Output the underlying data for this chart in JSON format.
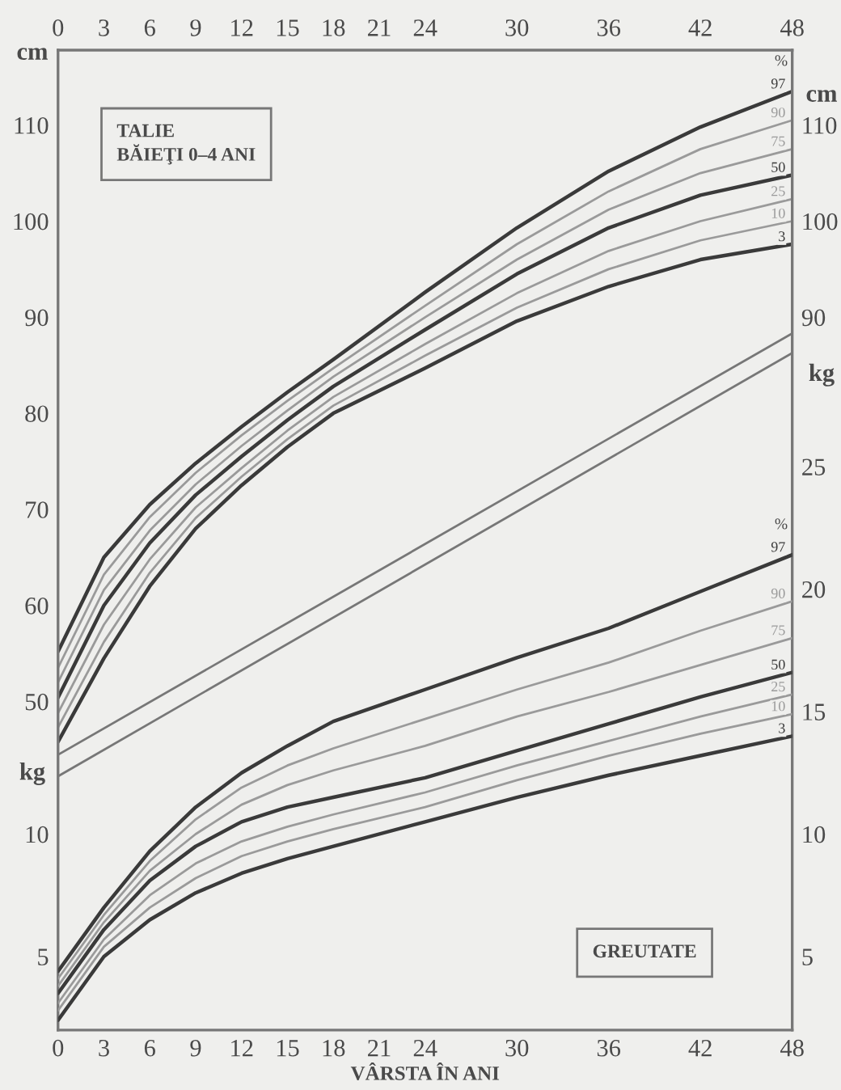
{
  "chart_data": [
    {
      "type": "line",
      "ylabel": "cm",
      "y2label": "cm",
      "x": [
        0,
        3,
        6,
        9,
        12,
        15,
        18,
        24,
        30,
        36,
        42,
        48
      ],
      "xlim": [
        0,
        48
      ],
      "x2lim": [
        0,
        48
      ],
      "x2ticks": [
        0,
        3,
        6,
        9,
        12,
        15,
        18,
        21,
        24,
        30,
        36,
        42,
        48
      ],
      "ylim": [
        15.8,
        117.8
      ],
      "yticks": [
        50,
        60,
        70,
        80,
        90,
        100,
        110
      ],
      "y2lim": [
        15.8,
        117.8
      ],
      "y2ticks": [
        90,
        100,
        110
      ],
      "grid": false,
      "legend": false,
      "marker": "none",
      "line_style": "solid",
      "annotations": [
        "TALIE\nBĂIEŢI 0–4 ANI",
        "%"
      ],
      "series": [
        {
          "name": "97",
          "color": "#3a3a3a",
          "values": [
            55.2,
            65,
            70.5,
            74.8,
            78.6,
            82.2,
            85.6,
            92.6,
            99.3,
            105.2,
            109.8,
            113.5
          ]
        },
        {
          "name": "90",
          "color": "#9a9a9a",
          "values": [
            53.5,
            63.2,
            69.2,
            73.8,
            77.7,
            81.3,
            84.7,
            91.2,
            97.6,
            103.1,
            107.5,
            110.5
          ]
        },
        {
          "name": "75",
          "color": "#9a9a9a",
          "values": [
            52,
            61.6,
            67.8,
            72.6,
            76.6,
            80.3,
            83.8,
            90,
            96,
            101.2,
            105,
            107.5
          ]
        },
        {
          "name": "50",
          "color": "#3a3a3a",
          "values": [
            50.4,
            60,
            66.5,
            71.5,
            75.5,
            79.3,
            82.8,
            88.7,
            94.5,
            99.3,
            102.7,
            104.8
          ]
        },
        {
          "name": "25",
          "color": "#9a9a9a",
          "values": [
            48.8,
            58,
            64.8,
            70.2,
            74.3,
            78.2,
            81.7,
            87.2,
            92.5,
            96.9,
            100,
            102.3
          ]
        },
        {
          "name": "10",
          "color": "#9a9a9a",
          "values": [
            47.3,
            56.2,
            63.4,
            69.1,
            73.4,
            77.3,
            80.8,
            86,
            91,
            95,
            98,
            100
          ]
        },
        {
          "name": "3",
          "color": "#3a3a3a",
          "values": [
            45.8,
            54.5,
            62,
            68,
            72.5,
            76.5,
            80,
            84.7,
            89.6,
            93.2,
            96,
            97.6
          ]
        }
      ]
    },
    {
      "type": "line",
      "xlabel": "VÂRSTA ÎN ANI",
      "ylabel": "kg",
      "y2label": "kg",
      "x": [
        0,
        3,
        6,
        9,
        12,
        15,
        18,
        24,
        30,
        36,
        42,
        48
      ],
      "xlim": [
        0,
        48
      ],
      "xticks": [
        0,
        3,
        6,
        9,
        12,
        15,
        18,
        21,
        24,
        30,
        36,
        42,
        48
      ],
      "ylim": [
        2,
        42
      ],
      "yticks": [
        5,
        10
      ],
      "y2lim": [
        2,
        42
      ],
      "y2ticks": [
        5,
        10,
        15,
        20,
        25
      ],
      "grid": false,
      "legend": false,
      "marker": "none",
      "line_style": "solid",
      "annotations": [
        "GREUTATE",
        "%"
      ],
      "series": [
        {
          "name": "97",
          "color": "#3a3a3a",
          "values": [
            4.4,
            7.0,
            9.3,
            11.1,
            12.5,
            13.6,
            14.6,
            15.9,
            17.2,
            18.4,
            19.9,
            21.4
          ]
        },
        {
          "name": "90",
          "color": "#9a9a9a",
          "values": [
            4.1,
            6.7,
            8.9,
            10.6,
            11.9,
            12.8,
            13.5,
            14.7,
            15.9,
            17.0,
            18.3,
            19.5
          ]
        },
        {
          "name": "75",
          "color": "#9a9a9a",
          "values": [
            3.8,
            6.4,
            8.5,
            10.0,
            11.2,
            12.0,
            12.6,
            13.6,
            14.8,
            15.8,
            16.9,
            18.0
          ]
        },
        {
          "name": "50",
          "color": "#3a3a3a",
          "values": [
            3.5,
            6.1,
            8.1,
            9.5,
            10.5,
            11.1,
            11.5,
            12.3,
            13.4,
            14.5,
            15.6,
            16.6
          ]
        },
        {
          "name": "25",
          "color": "#9a9a9a",
          "values": [
            3.1,
            5.7,
            7.5,
            8.8,
            9.7,
            10.3,
            10.8,
            11.7,
            12.8,
            13.8,
            14.8,
            15.7
          ]
        },
        {
          "name": "10",
          "color": "#9a9a9a",
          "values": [
            2.8,
            5.4,
            7.0,
            8.2,
            9.1,
            9.7,
            10.2,
            11.1,
            12.2,
            13.2,
            14.1,
            14.9
          ]
        },
        {
          "name": "3",
          "color": "#3a3a3a",
          "values": [
            2.4,
            5.0,
            6.5,
            7.6,
            8.4,
            9.0,
            9.5,
            10.5,
            11.5,
            12.4,
            13.2,
            14.0
          ]
        }
      ]
    }
  ]
}
